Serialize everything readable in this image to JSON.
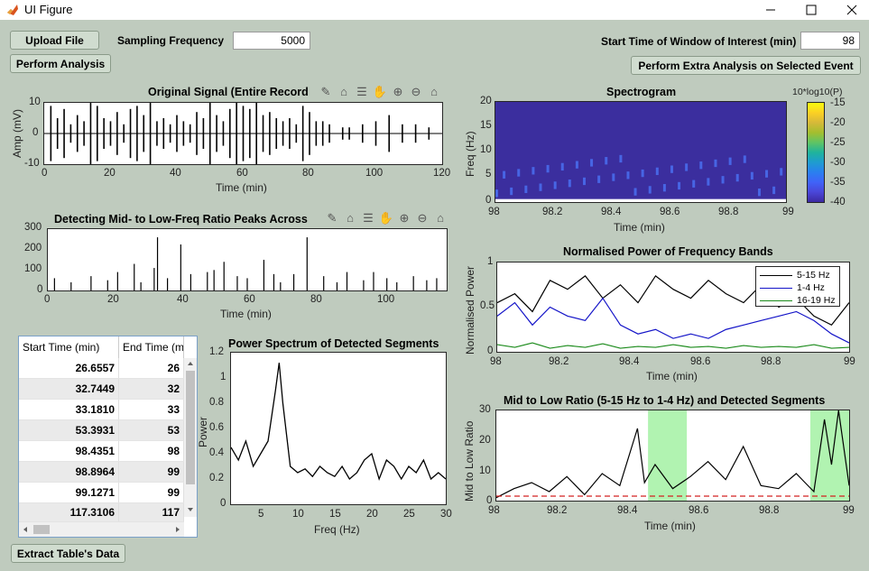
{
  "window": {
    "title": "UI Figure"
  },
  "controls": {
    "upload_label": "Upload File",
    "analysis_label": "Perform Analysis",
    "fs_label": "Sampling Frequency",
    "fs_value": "5000",
    "start_label": "Start Time of Window of Interest (min)",
    "start_value": "98",
    "extra_label": "Perform Extra Analysis on Selected Event",
    "extract_label": "Extract Table's Data"
  },
  "plots": {
    "orig": {
      "title": "Original Signal (Entire Record",
      "ylabel": "Amp (mV)",
      "xlabel": "Time (min)",
      "yticks": [
        "10",
        "0",
        "-10"
      ],
      "xticks": [
        "0",
        "20",
        "40",
        "60",
        "80",
        "100",
        "120"
      ]
    },
    "ratio": {
      "title": "Detecting Mid- to Low-Freq Ratio Peaks Across",
      "xlabel": "Time (min)",
      "yticks": [
        "300",
        "200",
        "100",
        "0"
      ],
      "xticks": [
        "0",
        "20",
        "40",
        "60",
        "80",
        "100"
      ]
    },
    "spec": {
      "title": "Spectrogram",
      "ylabel": "Freq (Hz)",
      "xlabel": "Time (min)",
      "yticks": [
        "20",
        "15",
        "10",
        "5",
        "0"
      ],
      "xticks": [
        "98",
        "98.2",
        "98.4",
        "98.6",
        "98.8",
        "99"
      ],
      "cbar_title": "10*log10(P)",
      "cbar_ticks": [
        "-15",
        "-20",
        "-25",
        "-30",
        "-35",
        "-40"
      ]
    },
    "norm": {
      "title": "Normalised Power of Frequency Bands",
      "ylabel": "Normalised Power",
      "xlabel": "Time (min)",
      "yticks": [
        "1",
        "0.5",
        "0"
      ],
      "xticks": [
        "98",
        "98.2",
        "98.4",
        "98.6",
        "98.8",
        "99"
      ],
      "legend": [
        "5-15 Hz",
        "1-4 Hz",
        "16-19 Hz"
      ]
    },
    "psd": {
      "title": "Power Spectrum of Detected Segments",
      "ylabel": "Power",
      "xlabel": "Freq (Hz)",
      "yticks": [
        "1.2",
        "1",
        "0.8",
        "0.6",
        "0.4",
        "0.2",
        "0"
      ],
      "xticks": [
        "5",
        "10",
        "15",
        "20",
        "25",
        "30"
      ]
    },
    "mlr": {
      "title": "Mid to Low Ratio (5-15 Hz to 1-4 Hz) and Detected Segments",
      "ylabel": "Mid to Low Ratio",
      "xlabel": "Time (min)",
      "yticks": [
        "30",
        "20",
        "10",
        "0"
      ],
      "xticks": [
        "98",
        "98.2",
        "98.4",
        "98.6",
        "98.8",
        "99"
      ]
    }
  },
  "table": {
    "headers": [
      "Start Time (min)",
      "End Time (m"
    ],
    "rows": [
      [
        "26.6557",
        "26"
      ],
      [
        "32.7449",
        "32"
      ],
      [
        "33.1810",
        "33"
      ],
      [
        "53.3931",
        "53"
      ],
      [
        "98.4351",
        "98"
      ],
      [
        "98.8964",
        "99"
      ],
      [
        "99.1271",
        "99"
      ],
      [
        "117.3106",
        "117"
      ]
    ]
  },
  "colors": {
    "band1": "#000000",
    "band2": "#1414c8",
    "band3": "#1a8a1a",
    "threshold": "#d42020",
    "segment_fill": "#90ee90",
    "spec_bg": "#3b2e9e"
  },
  "icons": [
    "brush-icon",
    "datatip-icon",
    "legend-icon",
    "pan-icon",
    "zoom-in-icon",
    "zoom-out-icon",
    "home-icon"
  ],
  "chart_data": [
    {
      "type": "line",
      "title": "Original Signal (Entire Record",
      "ylabel": "Amp (mV)",
      "xlabel": "Time (min)",
      "xlim": [
        0,
        120
      ],
      "ylim": [
        -10,
        10
      ],
      "burst_times": [
        2,
        4,
        6,
        8,
        10,
        12,
        14,
        16,
        18,
        20,
        22,
        24,
        26,
        28,
        30,
        32,
        34,
        36,
        38,
        40,
        42,
        44,
        46,
        48,
        50,
        52,
        54,
        56,
        58,
        60,
        62,
        64,
        66,
        68,
        70,
        72,
        74,
        76,
        78,
        80,
        82,
        84,
        86,
        90,
        92,
        96,
        100,
        104,
        108,
        112,
        116
      ],
      "burst_amps": [
        9,
        5,
        8,
        3,
        6,
        4,
        10,
        9,
        5,
        4,
        7,
        3,
        8,
        9,
        6,
        10,
        4,
        5,
        3,
        6,
        4,
        3,
        7,
        5,
        10,
        6,
        4,
        8,
        10,
        9,
        8,
        10,
        6,
        7,
        5,
        4,
        5,
        3,
        9,
        7,
        4,
        4,
        3,
        2,
        2,
        3,
        4,
        6,
        3,
        3,
        2
      ]
    },
    {
      "type": "bar",
      "title": "Detecting Mid- to Low-Freq Ratio Peaks Across",
      "xlabel": "Time (min)",
      "xlim": [
        0,
        120
      ],
      "ylim": [
        0,
        300
      ],
      "x": [
        2,
        7,
        13,
        18,
        21,
        26,
        28,
        32,
        33,
        36,
        40,
        43,
        48,
        50,
        53,
        57,
        60,
        65,
        68,
        70,
        74,
        78,
        83,
        87,
        90,
        95,
        98,
        102,
        105,
        110,
        114,
        117
      ],
      "values": [
        60,
        40,
        70,
        50,
        90,
        130,
        40,
        110,
        260,
        60,
        225,
        80,
        90,
        100,
        140,
        70,
        60,
        150,
        80,
        40,
        80,
        260,
        70,
        40,
        90,
        50,
        90,
        60,
        40,
        70,
        50,
        60
      ]
    },
    {
      "type": "heatmap",
      "title": "Spectrogram",
      "ylabel": "Freq (Hz)",
      "xlabel": "Time (min)",
      "xlim": [
        98,
        99
      ],
      "ylim": [
        0,
        20
      ],
      "colorbar_label": "10*log10(P)",
      "clim": [
        -40,
        -15
      ]
    },
    {
      "type": "line",
      "title": "Normalised Power of Frequency Bands",
      "ylabel": "Normalised Power",
      "xlabel": "Time (min)",
      "xlim": [
        98,
        99
      ],
      "ylim": [
        0,
        1
      ],
      "x": [
        98,
        98.05,
        98.1,
        98.15,
        98.2,
        98.25,
        98.3,
        98.35,
        98.4,
        98.45,
        98.5,
        98.55,
        98.6,
        98.65,
        98.7,
        98.75,
        98.8,
        98.85,
        98.9,
        98.95,
        99
      ],
      "series": [
        {
          "name": "5-15 Hz",
          "values": [
            0.55,
            0.65,
            0.45,
            0.8,
            0.7,
            0.85,
            0.6,
            0.75,
            0.55,
            0.85,
            0.7,
            0.6,
            0.8,
            0.65,
            0.55,
            0.75,
            0.5,
            0.6,
            0.4,
            0.3,
            0.55
          ]
        },
        {
          "name": "1-4 Hz",
          "values": [
            0.4,
            0.55,
            0.3,
            0.5,
            0.4,
            0.35,
            0.6,
            0.3,
            0.2,
            0.25,
            0.15,
            0.2,
            0.15,
            0.25,
            0.3,
            0.35,
            0.4,
            0.45,
            0.35,
            0.2,
            0.1
          ]
        },
        {
          "name": "16-19 Hz",
          "values": [
            0.08,
            0.05,
            0.1,
            0.04,
            0.07,
            0.05,
            0.09,
            0.04,
            0.06,
            0.05,
            0.08,
            0.05,
            0.06,
            0.04,
            0.07,
            0.05,
            0.06,
            0.05,
            0.08,
            0.04,
            0.05
          ]
        }
      ]
    },
    {
      "type": "line",
      "title": "Power Spectrum of Detected Segments",
      "ylabel": "Power",
      "xlabel": "Freq (Hz)",
      "xlim": [
        1,
        30
      ],
      "ylim": [
        0,
        1.2
      ],
      "x": [
        1,
        2,
        3,
        4,
        5,
        6,
        7,
        7.5,
        8,
        9,
        10,
        11,
        12,
        13,
        14,
        15,
        16,
        17,
        18,
        19,
        20,
        21,
        22,
        23,
        24,
        25,
        26,
        27,
        28,
        29,
        30
      ],
      "values": [
        0.45,
        0.35,
        0.5,
        0.3,
        0.4,
        0.5,
        0.9,
        1.12,
        0.8,
        0.3,
        0.25,
        0.28,
        0.22,
        0.3,
        0.25,
        0.22,
        0.3,
        0.2,
        0.25,
        0.35,
        0.4,
        0.2,
        0.35,
        0.3,
        0.2,
        0.3,
        0.25,
        0.35,
        0.2,
        0.25,
        0.2
      ]
    },
    {
      "type": "area",
      "title": "Mid to Low Ratio (5-15 Hz to 1-4 Hz) and Detected Segments",
      "ylabel": "Mid to Low Ratio",
      "xlabel": "Time (min)",
      "xlim": [
        98,
        99
      ],
      "ylim": [
        0,
        30
      ],
      "threshold": 1.5,
      "x": [
        98,
        98.05,
        98.1,
        98.15,
        98.2,
        98.25,
        98.3,
        98.35,
        98.4,
        98.42,
        98.45,
        98.5,
        98.55,
        98.6,
        98.65,
        98.7,
        98.75,
        98.8,
        98.85,
        98.9,
        98.93,
        98.95,
        98.97,
        99
      ],
      "values": [
        1,
        4,
        6,
        3,
        8,
        2,
        9,
        5,
        24,
        6,
        12,
        4,
        8,
        13,
        7,
        18,
        5,
        4,
        9,
        3,
        27,
        12,
        30,
        5
      ],
      "segments": [
        [
          98.43,
          98.54
        ],
        [
          98.89,
          99
        ]
      ]
    }
  ]
}
